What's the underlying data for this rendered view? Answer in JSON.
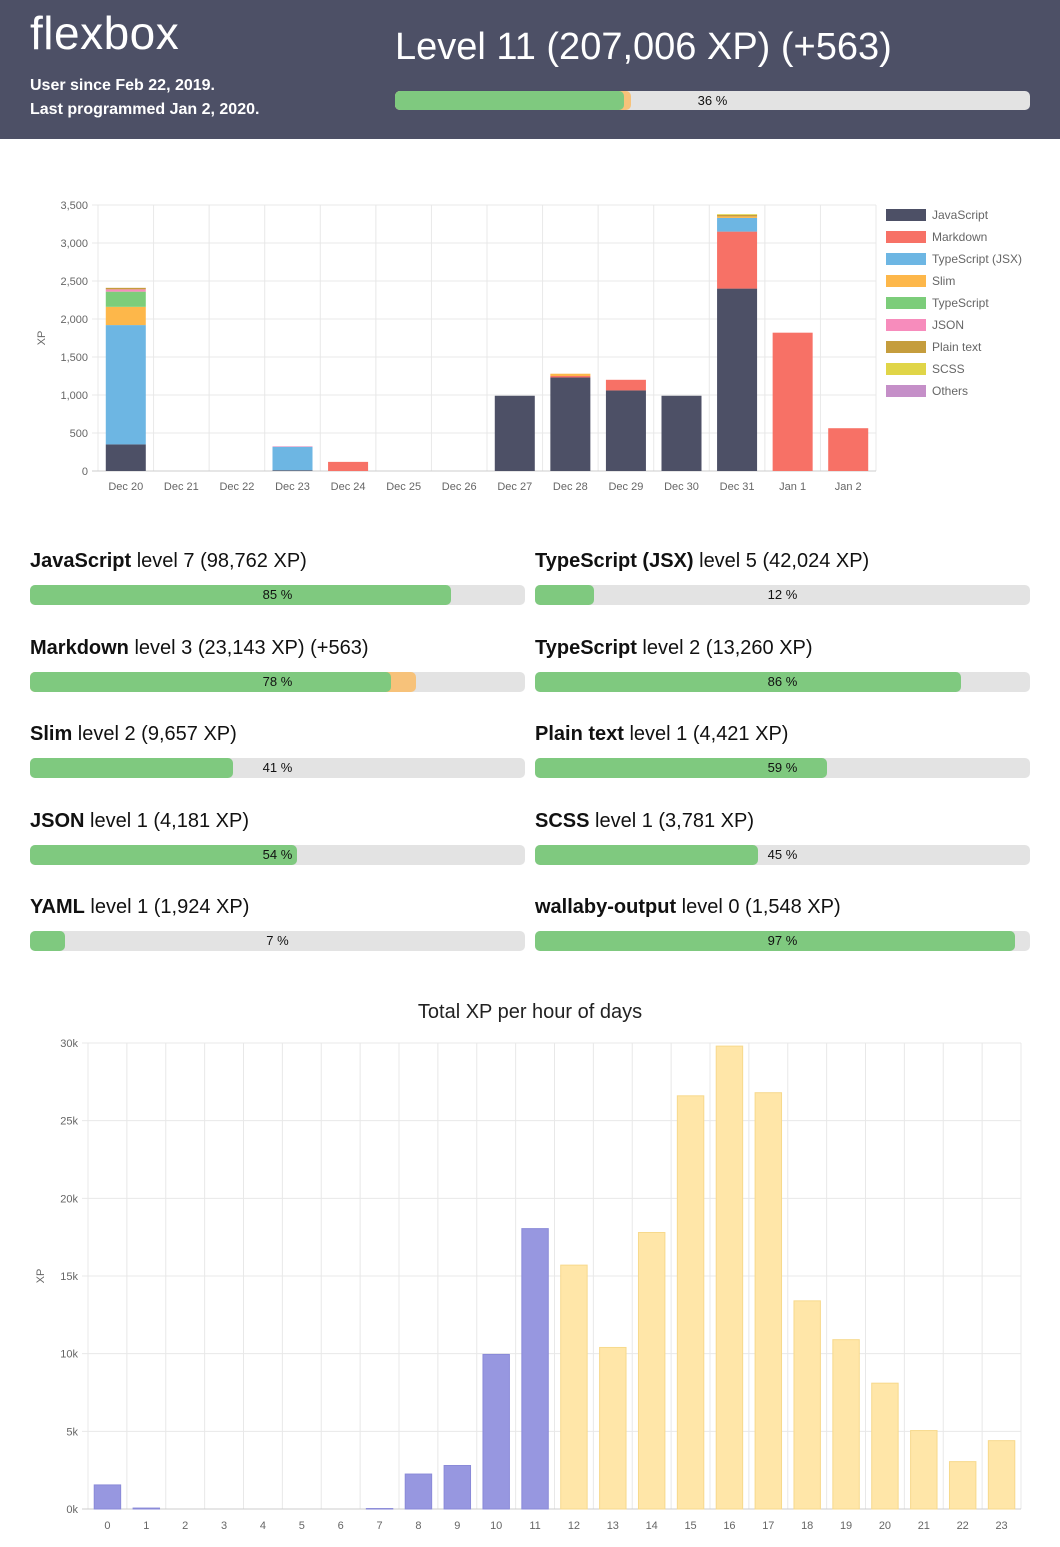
{
  "header": {
    "username": "flexbox",
    "user_since": "User since Feb 22, 2019.",
    "last_programmed": "Last programmed Jan 2, 2020.",
    "level_title": "Level 11 (207,006 XP) (+563)",
    "progress_percent": 36,
    "new_xp_percent": 1.2,
    "progress_label": "36 %"
  },
  "languages": [
    {
      "name": "JavaScript",
      "rest": " level 7 (98,762 XP)",
      "percent": 85,
      "new_percent": 0,
      "label": "85 %"
    },
    {
      "name": "TypeScript (JSX)",
      "rest": " level 5 (42,024 XP)",
      "percent": 12,
      "new_percent": 0,
      "label": "12 %"
    },
    {
      "name": "Markdown",
      "rest": " level 3 (23,143 XP) (+563)",
      "percent": 73,
      "new_percent": 5,
      "label": "78 %"
    },
    {
      "name": "TypeScript",
      "rest": " level 2 (13,260 XP)",
      "percent": 86,
      "new_percent": 0,
      "label": "86 %"
    },
    {
      "name": "Slim",
      "rest": " level 2 (9,657 XP)",
      "percent": 41,
      "new_percent": 0,
      "label": "41 %"
    },
    {
      "name": "Plain text",
      "rest": " level 1 (4,421 XP)",
      "percent": 59,
      "new_percent": 0,
      "label": "59 %"
    },
    {
      "name": "JSON",
      "rest": " level 1 (4,181 XP)",
      "percent": 54,
      "new_percent": 0,
      "label": "54 %"
    },
    {
      "name": "SCSS",
      "rest": " level 1 (3,781 XP)",
      "percent": 45,
      "new_percent": 0,
      "label": "45 %"
    },
    {
      "name": "YAML",
      "rest": " level 1 (1,924 XP)",
      "percent": 7,
      "new_percent": 0,
      "label": "7 %"
    },
    {
      "name": "wallaby-output",
      "rest": " level 0 (1,548 XP)",
      "percent": 97,
      "new_percent": 0,
      "label": "97 %"
    }
  ],
  "colors": {
    "header_bg": "#4d5066",
    "progress_fill": "#7fc97f",
    "progress_new": "#f7c27a",
    "progress_track": "#e3e3e3",
    "hour_day": "#ffe6a8",
    "hour_night": "#9797e0"
  },
  "chart_data": [
    {
      "type": "bar",
      "stacked": true,
      "title": "",
      "ylabel": "XP",
      "ylim": [
        0,
        3500
      ],
      "yticks": [
        "0",
        "500",
        "1,000",
        "1,500",
        "2,000",
        "2,500",
        "3,000",
        "3,500"
      ],
      "ytick_values": [
        0,
        500,
        1000,
        1500,
        2000,
        2500,
        3000,
        3500
      ],
      "categories": [
        "Dec 20",
        "Dec 21",
        "Dec 22",
        "Dec 23",
        "Dec 24",
        "Dec 25",
        "Dec 26",
        "Dec 27",
        "Dec 28",
        "Dec 29",
        "Dec 30",
        "Dec 31",
        "Jan 1",
        "Jan 2"
      ],
      "legend_position": "right",
      "series": [
        {
          "name": "JavaScript",
          "color": "#4d5066",
          "values": [
            350,
            0,
            0,
            10,
            0,
            0,
            0,
            990,
            1230,
            1060,
            990,
            2400,
            0,
            0
          ]
        },
        {
          "name": "Markdown",
          "color": "#f77166",
          "values": [
            0,
            0,
            0,
            0,
            120,
            0,
            0,
            0,
            20,
            140,
            0,
            750,
            1820,
            563
          ]
        },
        {
          "name": "TypeScript (JSX)",
          "color": "#6db6e3",
          "values": [
            1570,
            0,
            0,
            310,
            0,
            0,
            0,
            0,
            0,
            0,
            0,
            180,
            0,
            0
          ]
        },
        {
          "name": "Slim",
          "color": "#fdb74a",
          "values": [
            240,
            0,
            0,
            0,
            0,
            0,
            0,
            0,
            30,
            0,
            0,
            20,
            0,
            0
          ]
        },
        {
          "name": "TypeScript",
          "color": "#7ccd7a",
          "values": [
            200,
            0,
            0,
            0,
            0,
            0,
            0,
            0,
            0,
            0,
            0,
            0,
            0,
            0
          ]
        },
        {
          "name": "JSON",
          "color": "#f78cbc",
          "values": [
            30,
            0,
            0,
            5,
            0,
            0,
            0,
            0,
            0,
            0,
            0,
            0,
            0,
            0
          ]
        },
        {
          "name": "Plain text",
          "color": "#c59d3d",
          "values": [
            20,
            0,
            0,
            0,
            0,
            0,
            0,
            0,
            0,
            0,
            0,
            20,
            0,
            0
          ]
        },
        {
          "name": "SCSS",
          "color": "#e0d548",
          "values": [
            0,
            0,
            0,
            0,
            0,
            0,
            0,
            0,
            0,
            0,
            0,
            10,
            0,
            0
          ]
        },
        {
          "name": "Others",
          "color": "#c58fc8",
          "values": [
            0,
            0,
            0,
            0,
            0,
            0,
            0,
            0,
            0,
            0,
            0,
            0,
            0,
            0
          ]
        }
      ]
    },
    {
      "type": "bar",
      "title": "Total XP per hour of days",
      "ylabel": "XP",
      "ylim": [
        0,
        30000
      ],
      "yticks": [
        "0k",
        "5k",
        "10k",
        "15k",
        "20k",
        "25k",
        "30k"
      ],
      "ytick_values": [
        0,
        5000,
        10000,
        15000,
        20000,
        25000,
        30000
      ],
      "categories": [
        "0",
        "1",
        "2",
        "3",
        "4",
        "5",
        "6",
        "7",
        "8",
        "9",
        "10",
        "11",
        "12",
        "13",
        "14",
        "15",
        "16",
        "17",
        "18",
        "19",
        "20",
        "21",
        "22",
        "23"
      ],
      "values": [
        1550,
        60,
        0,
        0,
        0,
        0,
        0,
        30,
        2250,
        2800,
        9950,
        18050,
        15700,
        10400,
        17800,
        26600,
        29800,
        26800,
        13400,
        10900,
        8100,
        5050,
        3050,
        4400
      ],
      "night_hours": [
        "0",
        "1",
        "2",
        "3",
        "4",
        "5",
        "6",
        "7",
        "8",
        "9",
        "10",
        "11"
      ]
    }
  ]
}
